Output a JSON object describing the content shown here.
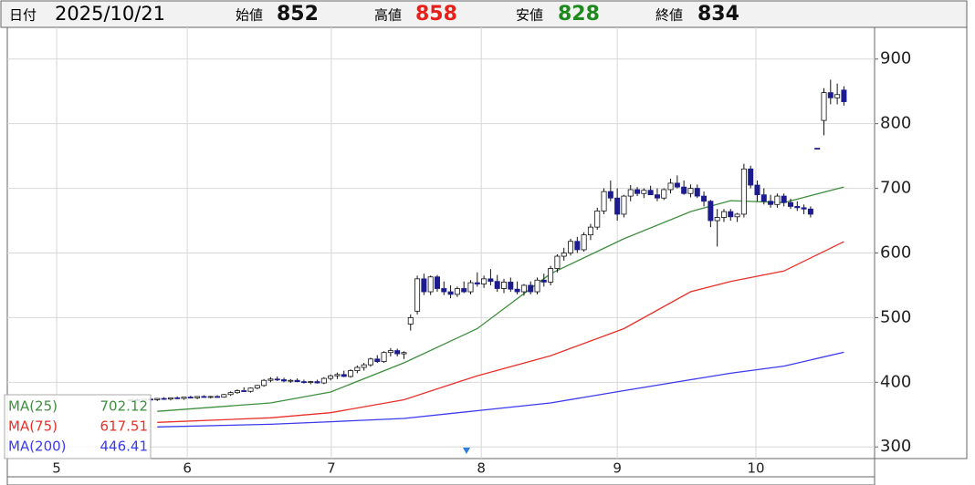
{
  "chart_data": {
    "type": "candlestick",
    "header": {
      "date_label": "日付",
      "date": "2025/10/21",
      "open_label": "始値",
      "high_label": "高値",
      "low_label": "安値",
      "close_label": "終値"
    },
    "categories": [
      null,
      null,
      null,
      null,
      null,
      null,
      null,
      null,
      null,
      null,
      null,
      null,
      null,
      null,
      null,
      null,
      null,
      null,
      null,
      null,
      null,
      null,
      null,
      null,
      null,
      null,
      null,
      null,
      null,
      null,
      null,
      null,
      null,
      null,
      null,
      null,
      null,
      null,
      null,
      null,
      null,
      null,
      null,
      null,
      null,
      null,
      null,
      null,
      null,
      null,
      null,
      null,
      null,
      null,
      null,
      null,
      null,
      null,
      null,
      null,
      null,
      null,
      null,
      null,
      null,
      null,
      null,
      null,
      null,
      null,
      null,
      null,
      null,
      null,
      null,
      null,
      null,
      null,
      null,
      null,
      null,
      null,
      null,
      null,
      null,
      null,
      null,
      null,
      null,
      null,
      null,
      null,
      null,
      null,
      null,
      null,
      null,
      null,
      null,
      null,
      null,
      null,
      null,
      null,
      null,
      null,
      null,
      null
    ],
    "open": [
      372,
      373,
      372,
      374,
      373,
      375,
      374,
      376,
      375,
      377,
      376,
      378,
      377,
      378,
      377,
      381,
      384,
      387,
      386,
      391,
      395,
      403,
      405,
      404,
      402,
      403,
      401,
      400,
      401,
      399,
      406,
      410,
      412,
      409,
      418,
      423,
      427,
      436,
      432,
      446,
      449,
      444,
      490,
      510,
      560,
      540,
      563,
      545,
      540,
      536,
      545,
      540,
      554,
      552,
      560,
      556,
      545,
      555,
      544,
      540,
      550,
      540,
      558,
      555,
      576,
      595,
      600,
      618,
      605,
      628,
      640,
      665,
      695,
      685,
      660,
      688,
      698,
      692,
      697,
      690,
      685,
      698,
      708,
      702,
      692,
      700,
      688,
      680,
      650,
      655,
      664,
      656,
      660,
      730,
      705,
      690,
      680,
      675,
      688,
      678,
      672,
      670,
      668,
      762,
      805,
      848,
      840,
      852
    ],
    "high": [
      374,
      375,
      374,
      376,
      375,
      377,
      376,
      378,
      377,
      379,
      378,
      380,
      379,
      380,
      382,
      386,
      389,
      392,
      392,
      396,
      405,
      408,
      409,
      407,
      405,
      406,
      404,
      402,
      404,
      408,
      412,
      415,
      418,
      420,
      426,
      430,
      438,
      442,
      448,
      453,
      452,
      448,
      505,
      565,
      568,
      565,
      566,
      556,
      550,
      548,
      556,
      558,
      570,
      565,
      575,
      566,
      560,
      562,
      556,
      552,
      556,
      562,
      568,
      580,
      598,
      608,
      622,
      625,
      632,
      645,
      670,
      700,
      712,
      700,
      690,
      705,
      702,
      700,
      704,
      700,
      700,
      715,
      720,
      712,
      706,
      706,
      695,
      682,
      668,
      668,
      668,
      662,
      738,
      735,
      712,
      700,
      690,
      692,
      692,
      684,
      680,
      675,
      672,
      762,
      855,
      868,
      862,
      858
    ],
    "low": [
      370,
      371,
      370,
      372,
      371,
      373,
      372,
      374,
      373,
      375,
      374,
      376,
      375,
      376,
      376,
      379,
      382,
      385,
      384,
      389,
      393,
      400,
      402,
      400,
      399,
      400,
      398,
      397,
      398,
      397,
      403,
      405,
      408,
      407,
      414,
      418,
      424,
      430,
      430,
      440,
      440,
      436,
      480,
      505,
      535,
      535,
      540,
      535,
      530,
      532,
      538,
      536,
      548,
      546,
      550,
      540,
      538,
      540,
      536,
      534,
      536,
      536,
      548,
      550,
      570,
      588,
      596,
      600,
      602,
      620,
      636,
      660,
      680,
      650,
      655,
      680,
      688,
      685,
      690,
      680,
      682,
      692,
      700,
      690,
      686,
      685,
      672,
      640,
      610,
      648,
      650,
      648,
      655,
      700,
      680,
      675,
      670,
      670,
      672,
      668,
      665,
      660,
      655,
      762,
      782,
      830,
      830,
      828
    ],
    "close": [
      373,
      372,
      374,
      373,
      375,
      374,
      376,
      375,
      377,
      376,
      378,
      377,
      378,
      377,
      381,
      384,
      387,
      386,
      391,
      395,
      403,
      405,
      404,
      402,
      403,
      401,
      400,
      401,
      399,
      406,
      410,
      412,
      409,
      418,
      423,
      427,
      436,
      432,
      446,
      449,
      444,
      446,
      500,
      560,
      540,
      563,
      545,
      540,
      536,
      545,
      540,
      554,
      552,
      560,
      556,
      545,
      555,
      544,
      540,
      550,
      540,
      558,
      555,
      576,
      595,
      600,
      618,
      605,
      628,
      640,
      665,
      695,
      685,
      660,
      688,
      698,
      692,
      697,
      690,
      685,
      698,
      708,
      702,
      692,
      700,
      688,
      680,
      650,
      655,
      664,
      656,
      660,
      730,
      705,
      690,
      680,
      675,
      688,
      678,
      672,
      670,
      668,
      660,
      762,
      848,
      840,
      845,
      834
    ],
    "series": [
      {
        "name": "MA(25)",
        "color": "#3f8f3f",
        "x": [
          4,
          21,
          30,
          41,
          52,
          63,
          74,
          84,
          90,
          98,
          107
        ],
        "values": [
          355,
          368,
          385,
          430,
          483,
          568,
          622,
          664,
          681,
          678,
          702.12
        ]
      },
      {
        "name": "MA(75)",
        "color": "#e8302a",
        "x": [
          4,
          21,
          30,
          41,
          52,
          63,
          74,
          84,
          90,
          98,
          107
        ],
        "values": [
          338,
          345,
          353,
          373,
          410,
          441,
          483,
          540,
          556,
          572,
          617.51
        ]
      },
      {
        "name": "MA(200)",
        "color": "#3a3aee",
        "x": [
          4,
          21,
          30,
          41,
          52,
          63,
          74,
          84,
          90,
          98,
          107
        ],
        "values": [
          331,
          335,
          339,
          344,
          356,
          368,
          387,
          404,
          414,
          425,
          446.41
        ]
      }
    ],
    "xlim": [
      -18.5,
      111.6
    ],
    "xticks": [
      {
        "value": -11.1,
        "label": "5"
      },
      {
        "value": 8.5,
        "label": "6"
      },
      {
        "value": 30.1,
        "label": "7"
      },
      {
        "value": 52.6,
        "label": "8"
      },
      {
        "value": 73,
        "label": "9"
      },
      {
        "value": 93.8,
        "label": "10"
      }
    ],
    "ylim": [
      282,
      949
    ],
    "yticks": [
      300,
      400,
      500,
      600,
      700,
      800,
      900
    ],
    "grid": true,
    "up_color": "#ffffff",
    "down_color": "#1c1c8e"
  }
}
